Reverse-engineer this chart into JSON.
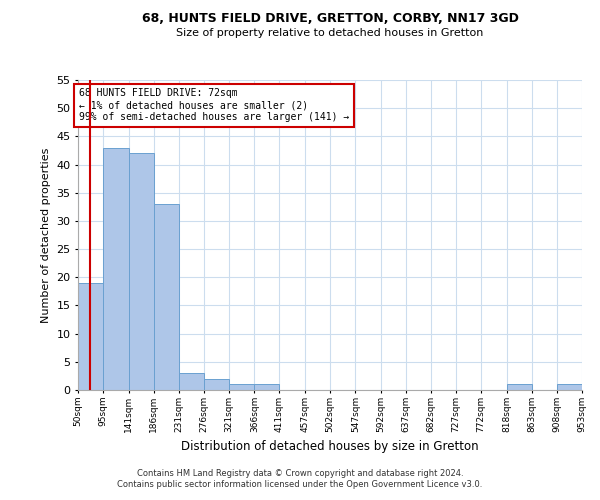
{
  "title1": "68, HUNTS FIELD DRIVE, GRETTON, CORBY, NN17 3GD",
  "title2": "Size of property relative to detached houses in Gretton",
  "xlabel": "Distribution of detached houses by size in Gretton",
  "ylabel": "Number of detached properties",
  "annotation_line1": "68 HUNTS FIELD DRIVE: 72sqm",
  "annotation_line2": "← 1% of detached houses are smaller (2)",
  "annotation_line3": "99% of semi-detached houses are larger (141) →",
  "property_size_sqm": 72,
  "bin_edges": [
    50,
    95,
    141,
    186,
    231,
    276,
    321,
    366,
    411,
    457,
    502,
    547,
    592,
    637,
    682,
    727,
    772,
    818,
    863,
    908,
    953
  ],
  "bin_counts": [
    19,
    43,
    42,
    33,
    3,
    2,
    1,
    1,
    0,
    0,
    0,
    0,
    0,
    0,
    0,
    0,
    0,
    1,
    0,
    1
  ],
  "bar_color": "#aec6e8",
  "bar_edge_color": "#6aa0d0",
  "marker_color": "#cc0000",
  "annotation_box_color": "#cc0000",
  "background_color": "#ffffff",
  "grid_color": "#ccddee",
  "ylim": [
    0,
    55
  ],
  "yticks": [
    0,
    5,
    10,
    15,
    20,
    25,
    30,
    35,
    40,
    45,
    50,
    55
  ],
  "footer1": "Contains HM Land Registry data © Crown copyright and database right 2024.",
  "footer2": "Contains public sector information licensed under the Open Government Licence v3.0."
}
